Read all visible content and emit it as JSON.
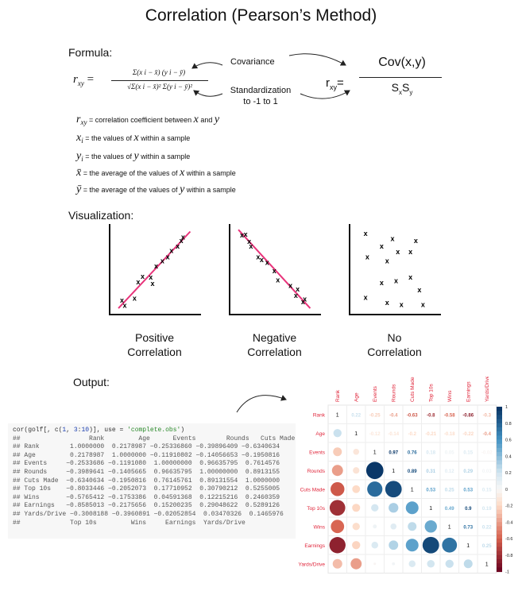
{
  "title": "Correlation (Pearson’s Method)",
  "formula": {
    "heading": "Formula:",
    "r_xy": "r",
    "r_sub": "xy",
    "equals": "=",
    "numerator": "Σ(x i − x̄) (y i − ȳ)",
    "denominator": "√Σ(x i − x̄)² Σ(y i − ȳ)²",
    "covariance_label": "Covariance",
    "standardization_label_1": "Standardization",
    "standardization_label_2": "to -1 to 1",
    "alt_left": "r",
    "alt_left_sub": "xy",
    "alt_equals": "=",
    "alt_numerator": "Cov(x,y)",
    "alt_denominator": "S",
    "alt_den_sub1": "x",
    "alt_den_s2": "S",
    "alt_den_sub2": "y",
    "definitions": [
      {
        "symbol": "r",
        "sub": "xy",
        "text": " = correlation coefficient between ",
        "v1": "x",
        "mid": " and ",
        "v2": "y"
      },
      {
        "symbol": "x",
        "sub": "i",
        "text": " = the values of ",
        "v1": "x",
        "mid": " within a sample",
        "v2": ""
      },
      {
        "symbol": "y",
        "sub": "i",
        "text": " = the values of ",
        "v1": "y",
        "mid": " within a sample",
        "v2": ""
      },
      {
        "symbol": "x̄",
        "sub": "",
        "text": " = the average of the values of ",
        "v1": "x",
        "mid": " within a sample",
        "v2": ""
      },
      {
        "symbol": "ȳ",
        "sub": "",
        "text": " = the average of the values of ",
        "v1": "y",
        "mid": " within a sample",
        "v2": ""
      }
    ]
  },
  "visualization": {
    "heading": "Visualization:",
    "marker": "x",
    "line_color": "#e8337a",
    "plots": [
      {
        "caption_1": "Positive",
        "caption_2": "Correlation",
        "trend": "positive",
        "points": [
          [
            0.12,
            0.15
          ],
          [
            0.15,
            0.09
          ],
          [
            0.26,
            0.17
          ],
          [
            0.3,
            0.35
          ],
          [
            0.35,
            0.41
          ],
          [
            0.44,
            0.4
          ],
          [
            0.46,
            0.33
          ],
          [
            0.5,
            0.52
          ],
          [
            0.57,
            0.58
          ],
          [
            0.63,
            0.62
          ],
          [
            0.67,
            0.69
          ],
          [
            0.74,
            0.74
          ],
          [
            0.78,
            0.8
          ],
          [
            0.8,
            0.84
          ]
        ]
      },
      {
        "caption_1": "Negative",
        "caption_2": "Correlation",
        "trend": "negative",
        "points": [
          [
            0.12,
            0.86
          ],
          [
            0.16,
            0.87
          ],
          [
            0.2,
            0.79
          ],
          [
            0.22,
            0.74
          ],
          [
            0.3,
            0.62
          ],
          [
            0.34,
            0.59
          ],
          [
            0.4,
            0.56
          ],
          [
            0.48,
            0.47
          ],
          [
            0.52,
            0.37
          ],
          [
            0.66,
            0.31
          ],
          [
            0.72,
            0.2
          ],
          [
            0.74,
            0.27
          ],
          [
            0.8,
            0.13
          ],
          [
            0.82,
            0.16
          ]
        ]
      },
      {
        "caption_1": "No",
        "caption_2": "Correlation",
        "trend": "none",
        "points": [
          [
            0.16,
            0.88
          ],
          [
            0.18,
            0.62
          ],
          [
            0.16,
            0.18
          ],
          [
            0.34,
            0.74
          ],
          [
            0.4,
            0.58
          ],
          [
            0.46,
            0.82
          ],
          [
            0.52,
            0.68
          ],
          [
            0.66,
            0.68
          ],
          [
            0.72,
            0.8
          ],
          [
            0.34,
            0.34
          ],
          [
            0.4,
            0.12
          ],
          [
            0.5,
            0.36
          ],
          [
            0.56,
            0.1
          ],
          [
            0.66,
            0.4
          ],
          [
            0.76,
            0.26
          ],
          [
            0.8,
            0.1
          ]
        ]
      }
    ]
  },
  "output": {
    "heading": "Output:",
    "code_call_1": "cor(golf[, ",
    "code_call_2": "c(",
    "code_num_1": "1",
    "code_call_3": ", ",
    "code_num_2": "3",
    "code_call_4": ":",
    "code_num_3": "10",
    "code_call_5": ")], use = ",
    "code_str": "'complete.obs'",
    "code_call_6": ")",
    "lines": [
      "##                  Rank         Age      Events        Rounds   Cuts Made",
      "## Rank        1.0000000  0.2178987 −0.25336860 −0.39896409 −0.6340634",
      "## Age         0.2178987  1.0000000 −0.11910802 −0.14056653 −0.1950816",
      "## Events     −0.2533686 −0.1191080  1.00000000  0.96635795  0.7614576",
      "## Rounds     −0.3989641 −0.1405665  0.96635795  1.00000000  0.8913155",
      "## Cuts Made  −0.6340634 −0.1950816  0.76145761  0.89131554  1.0000000",
      "## Top 10s    −0.8033446 −0.2052073  0.17710952  0.30790212  0.5255005",
      "## Wins       −0.5765412 −0.1753386  0.04591368  0.12215216  0.2460359",
      "## Earnings   −0.8585013 −0.2175656  0.15200235  0.29048622  0.5289126",
      "## Yards/Drive −0.3008188 −0.3960891 −0.02052854  0.03470326  0.1465976",
      "##             Top 10s         Wins     Earnings  Yards/Drive"
    ]
  },
  "chart_data": {
    "type": "heatmap",
    "title": "",
    "variables": [
      "Rank",
      "Age",
      "Events",
      "Rounds",
      "Cuts Made",
      "Top 10s",
      "Wins",
      "Earnings",
      "Yards/Drive"
    ],
    "values": [
      [
        1,
        0.22,
        -0.25,
        -0.4,
        -0.63,
        -0.8,
        -0.58,
        -0.86,
        -0.3
      ],
      [
        0.22,
        1,
        -0.12,
        -0.14,
        -0.2,
        -0.21,
        -0.18,
        -0.22,
        -0.4
      ],
      [
        -0.25,
        -0.12,
        1,
        0.97,
        0.76,
        0.18,
        0.05,
        0.15,
        -0.02
      ],
      [
        -0.4,
        -0.14,
        0.97,
        1,
        0.89,
        0.31,
        0.12,
        0.29,
        0.03
      ],
      [
        -0.63,
        -0.2,
        0.76,
        0.89,
        1,
        0.53,
        0.25,
        0.53,
        0.15
      ],
      [
        -0.8,
        -0.21,
        0.18,
        0.31,
        0.53,
        1,
        0.49,
        0.9,
        0.19
      ],
      [
        -0.58,
        -0.18,
        0.05,
        0.12,
        0.25,
        0.49,
        1,
        0.73,
        0.22
      ],
      [
        -0.86,
        -0.22,
        0.15,
        0.29,
        0.53,
        0.9,
        0.73,
        1,
        0.25
      ],
      [
        -0.3,
        -0.4,
        -0.02,
        0.03,
        0.15,
        0.19,
        0.22,
        0.25,
        1
      ]
    ],
    "value_labels": [
      [
        "",
        "0.22",
        "-0.25",
        "-0.4",
        "-0.63",
        "-0.8",
        "-0.58",
        "-0.86",
        "-0.3"
      ],
      [
        "",
        "",
        "-0.12",
        "-0.14",
        "-0.2",
        "-0.21",
        "-0.18",
        "-0.22",
        "-0.4"
      ],
      [
        "",
        "",
        "",
        "0.97",
        "0.76",
        "0.18",
        "0.05",
        "0.15",
        "-0.02"
      ],
      [
        "",
        "",
        "",
        "",
        "0.89",
        "0.31",
        "0.12",
        "0.29",
        "0.03"
      ],
      [
        "",
        "",
        "",
        "",
        "",
        "0.53",
        "0.25",
        "0.53",
        "0.15"
      ],
      [
        "",
        "",
        "",
        "",
        "",
        "",
        "0.49",
        "0.9",
        "0.19"
      ],
      [
        "",
        "",
        "",
        "",
        "",
        "",
        "",
        "0.73",
        "0.22"
      ],
      [
        "",
        "",
        "",
        "",
        "",
        "",
        "",
        "",
        "0.25"
      ],
      [
        "",
        "",
        "",
        "",
        "",
        "",
        "",
        "",
        ""
      ]
    ],
    "diagonal_label": "1",
    "upper": "number",
    "lower": "circle",
    "colorbar_ticks": [
      "1",
      "0.8",
      "0.6",
      "0.4",
      "0.2",
      "0",
      "-0.2",
      "-0.4",
      "-0.6",
      "-0.8",
      "-1"
    ],
    "colorbar_range": [
      -1,
      1
    ],
    "label_color": "#e0253a",
    "positive_color": "#053061",
    "negative_color": "#67001f"
  }
}
